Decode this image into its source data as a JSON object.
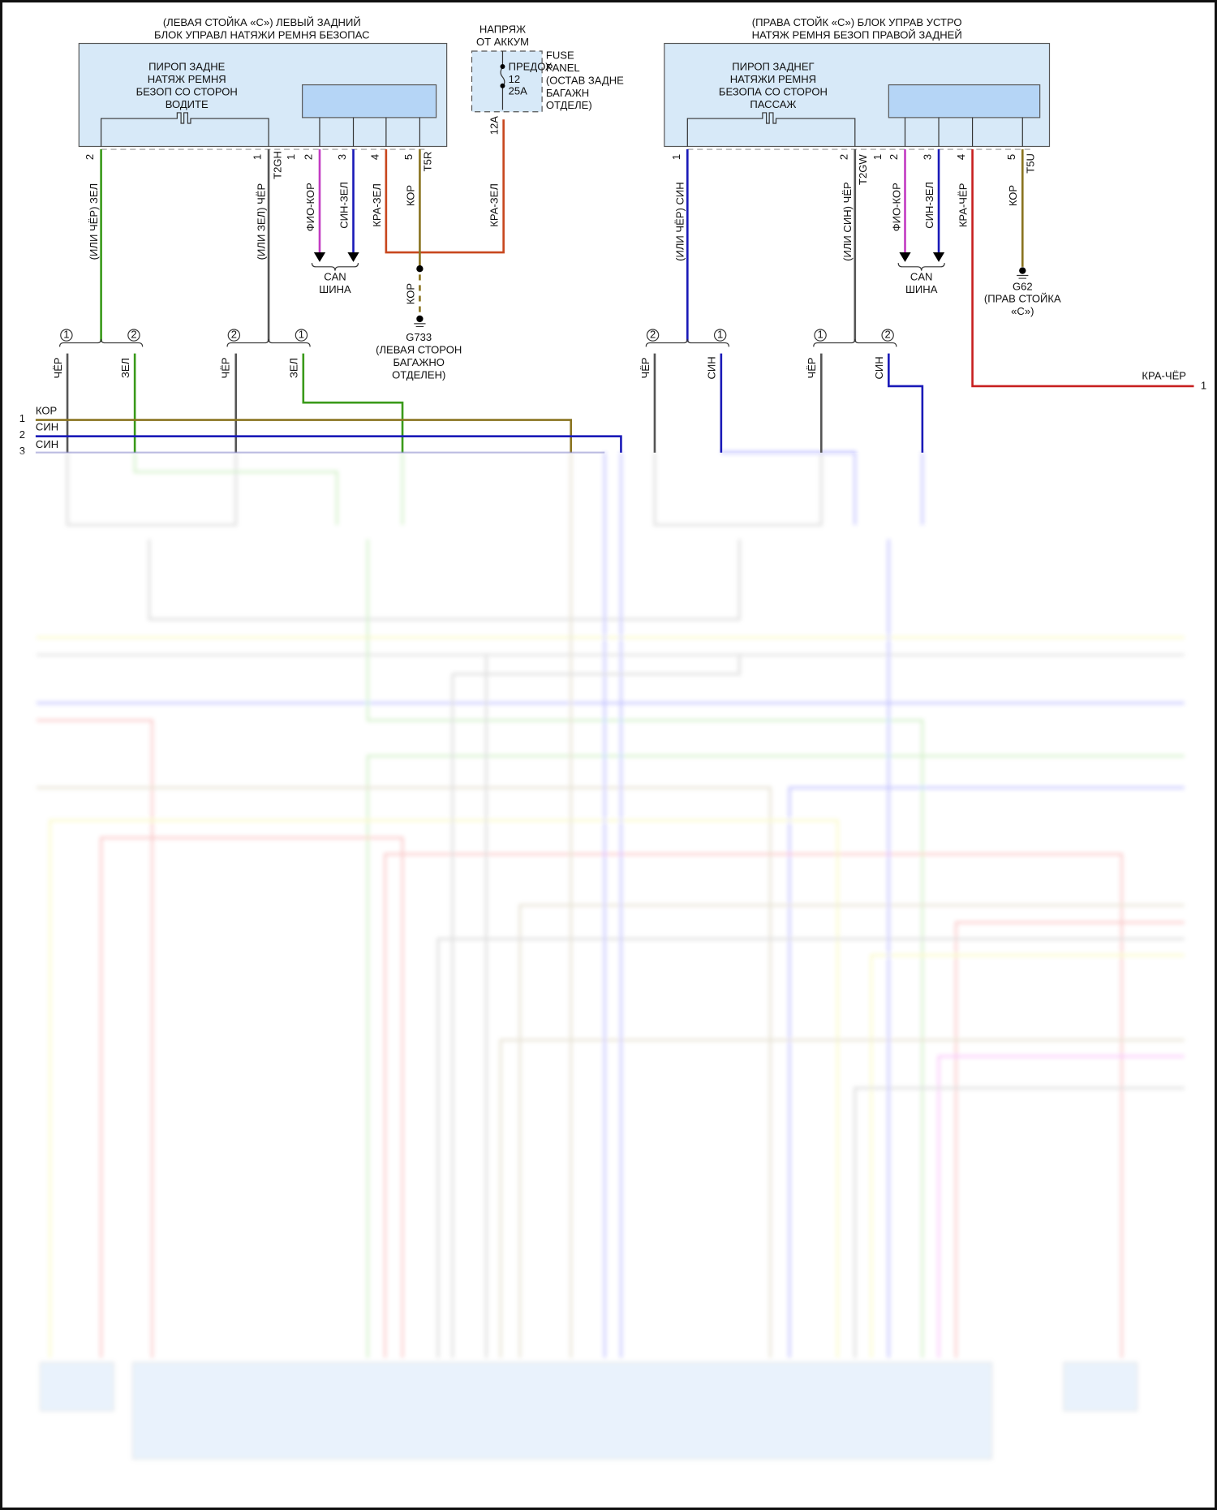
{
  "colors": {
    "box_fill": "#d7e9f8",
    "inner_fill": "#b5d5f6",
    "green": "#3a9a1a",
    "gray": "#555555",
    "magenta": "#c23bc2",
    "blue": "#1a1ab8",
    "red_orange": "#c8471e",
    "red": "#c82020",
    "olive": "#8a7420"
  },
  "left_module": {
    "title": [
      "(ЛЕВАЯ СТОЙКА «C») ЛЕВЫЙ ЗАДНИЙ",
      "БЛОК УПРАВЛ НАТЯЖИ РЕМНЯ БЕЗОПАС"
    ],
    "squib": [
      "ПИРОП ЗАДНЕ",
      "НАТЯЖ РЕМНЯ",
      "БЕЗОП СО СТОРОН",
      "ВОДИТЕ"
    ],
    "pins": [
      "2",
      "1",
      "1",
      "2",
      "3",
      "4",
      "5"
    ],
    "connectors": [
      "T2GH",
      "T5R"
    ],
    "wires": [
      "(ИЛИ ЧЁР) ЗЕЛ",
      "(ИЛИ ЗЕЛ) ЧЁР",
      "ФИО-КОР",
      "СИН-ЗЕЛ",
      "КРА-ЗЕЛ",
      "КОР",
      "КРА-ЗЕЛ",
      "КОР"
    ],
    "can": [
      "CAN",
      "ШИНА"
    ],
    "ground": [
      "G733",
      "(ЛЕВАЯ СТОРОН",
      "БАГАЖНО",
      "ОТДЕЛЕН)"
    ]
  },
  "fuse": {
    "source": [
      "НАПРЯЖ",
      "ОТ АККУМ"
    ],
    "panel": [
      "FUSE",
      "PANEL",
      "(ОСТАВ ЗАДНЕ",
      "БАГАЖН",
      "ОТДЕЛЕ)"
    ],
    "fuse_label": [
      "ПРЕДОХ",
      "12",
      "25A"
    ],
    "pin": "12A"
  },
  "right_module": {
    "title": [
      "(ПРАВА СТОЙК «C») БЛОК УПРАВ УСТРО",
      "НАТЯЖ РЕМНЯ БЕЗОП ПРАВОЙ ЗАДНЕЙ"
    ],
    "squib": [
      "ПИРОП ЗАДНЕГ",
      "НАТЯЖИ РЕМНЯ",
      "БЕЗОПА СО СТОРОН",
      "ПАССАЖ"
    ],
    "pins": [
      "1",
      "2",
      "1",
      "2",
      "3",
      "4",
      "5"
    ],
    "connectors": [
      "T2GW",
      "T5U"
    ],
    "wires": [
      "(ИЛИ ЧЁР) СИН",
      "(ИЛИ СИН) ЧЁР",
      "ФИО-КОР",
      "СИН-ЗЕЛ",
      "КРА-ЧЁР",
      "КОР"
    ],
    "can": [
      "CAN",
      "ШИНА"
    ],
    "ground": [
      "G62",
      "(ПРАВ СТОЙКА",
      "«C»)"
    ],
    "output_label": "КРА-ЧЁР",
    "output_pin": "1"
  },
  "splices": {
    "numbers": [
      "1",
      "2",
      "2",
      "1",
      "2",
      "1",
      "1",
      "2"
    ],
    "wire_labels": [
      "ЧЁР",
      "ЗЕЛ",
      "ЧЁР",
      "ЗЕЛ",
      "ЧЁР",
      "СИН",
      "ЧЁР",
      "СИН"
    ]
  },
  "bus": {
    "rows": [
      {
        "pin": "1",
        "label": "КОР"
      },
      {
        "pin": "2",
        "label": "СИН"
      },
      {
        "pin": "3",
        "label": "СИН"
      }
    ]
  }
}
